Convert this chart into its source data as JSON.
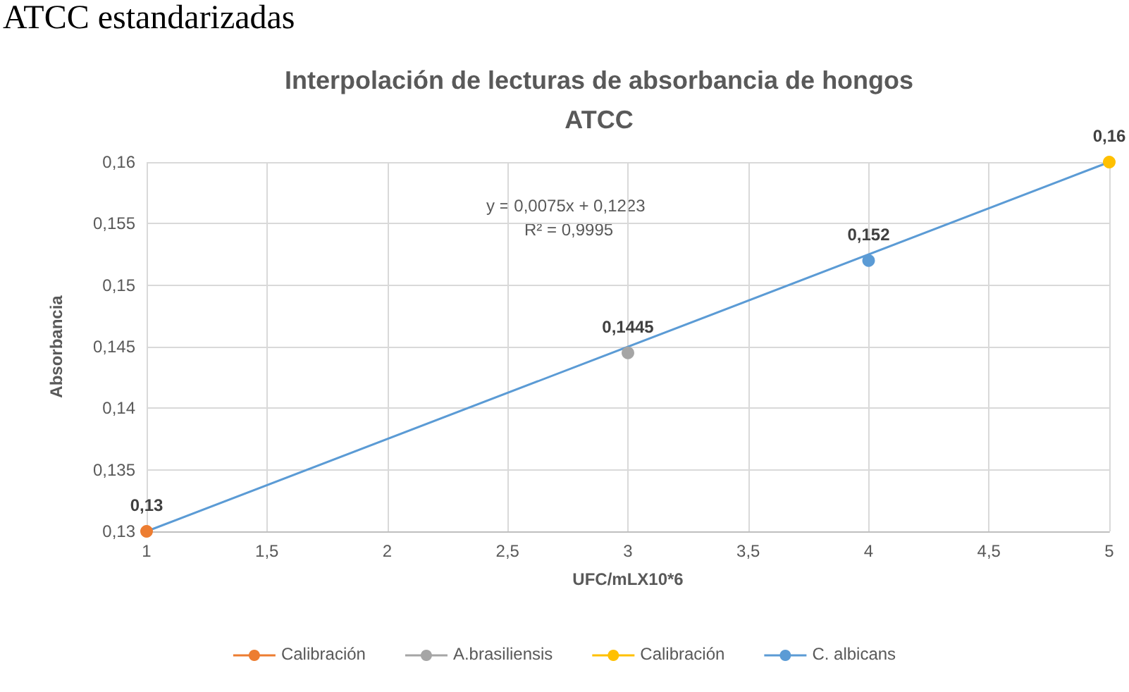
{
  "chart_data": {
    "type": "line",
    "title": "Interpolación de lecturas de absorbancia de hongos\nATCC",
    "xlabel": "UFC/mLX10*6",
    "ylabel": "Absorbancia",
    "annotations": [
      "ATCC estandarizadas",
      "y = 0,0075x + 0,1223",
      "R² = 0,9995"
    ],
    "series": [
      {
        "name": "Calibración",
        "color": "#ed7d31",
        "x": [
          1
        ],
        "values": [
          0.13
        ],
        "value_labels": [
          "0,13"
        ]
      },
      {
        "name": "A.brasiliensis",
        "color": "#a5a5a5",
        "x": [
          3
        ],
        "values": [
          0.1445
        ],
        "value_labels": [
          "0,1445"
        ]
      },
      {
        "name": "Calibración",
        "color": "#ffc000",
        "x": [
          5
        ],
        "values": [
          0.16
        ],
        "value_labels": [
          "0,16"
        ]
      },
      {
        "name": "C. albicans",
        "color": "#5b9bd5",
        "x": [
          4
        ],
        "values": [
          0.152
        ],
        "value_labels": [
          "0,152"
        ]
      },
      {
        "type": "line",
        "color": "#5b9bd5",
        "x": [
          1,
          5
        ],
        "values": [
          0.13,
          0.16
        ],
        "marker": "none"
      }
    ],
    "xlim": [
      1,
      5
    ],
    "xticks": [
      1,
      {
        "value": 1.5,
        "label": "1,5"
      },
      2,
      {
        "value": 2.5,
        "label": "2,5"
      },
      3,
      {
        "value": 3.5,
        "label": "3,5"
      },
      4,
      {
        "value": 4.5,
        "label": "4,5"
      },
      5
    ],
    "ylim": [
      0.13,
      0.16
    ],
    "yticks": [
      {
        "value": 0.13,
        "label": "0,13"
      },
      {
        "value": 0.135,
        "label": "0,135"
      },
      {
        "value": 0.14,
        "label": "0,14"
      },
      {
        "value": 0.145,
        "label": "0,145"
      },
      {
        "value": 0.15,
        "label": "0,15"
      },
      {
        "value": 0.155,
        "label": "0,155"
      },
      {
        "value": 0.16,
        "label": "0,16"
      }
    ],
    "grid": true,
    "legend": "bottom",
    "marker": "circle"
  }
}
